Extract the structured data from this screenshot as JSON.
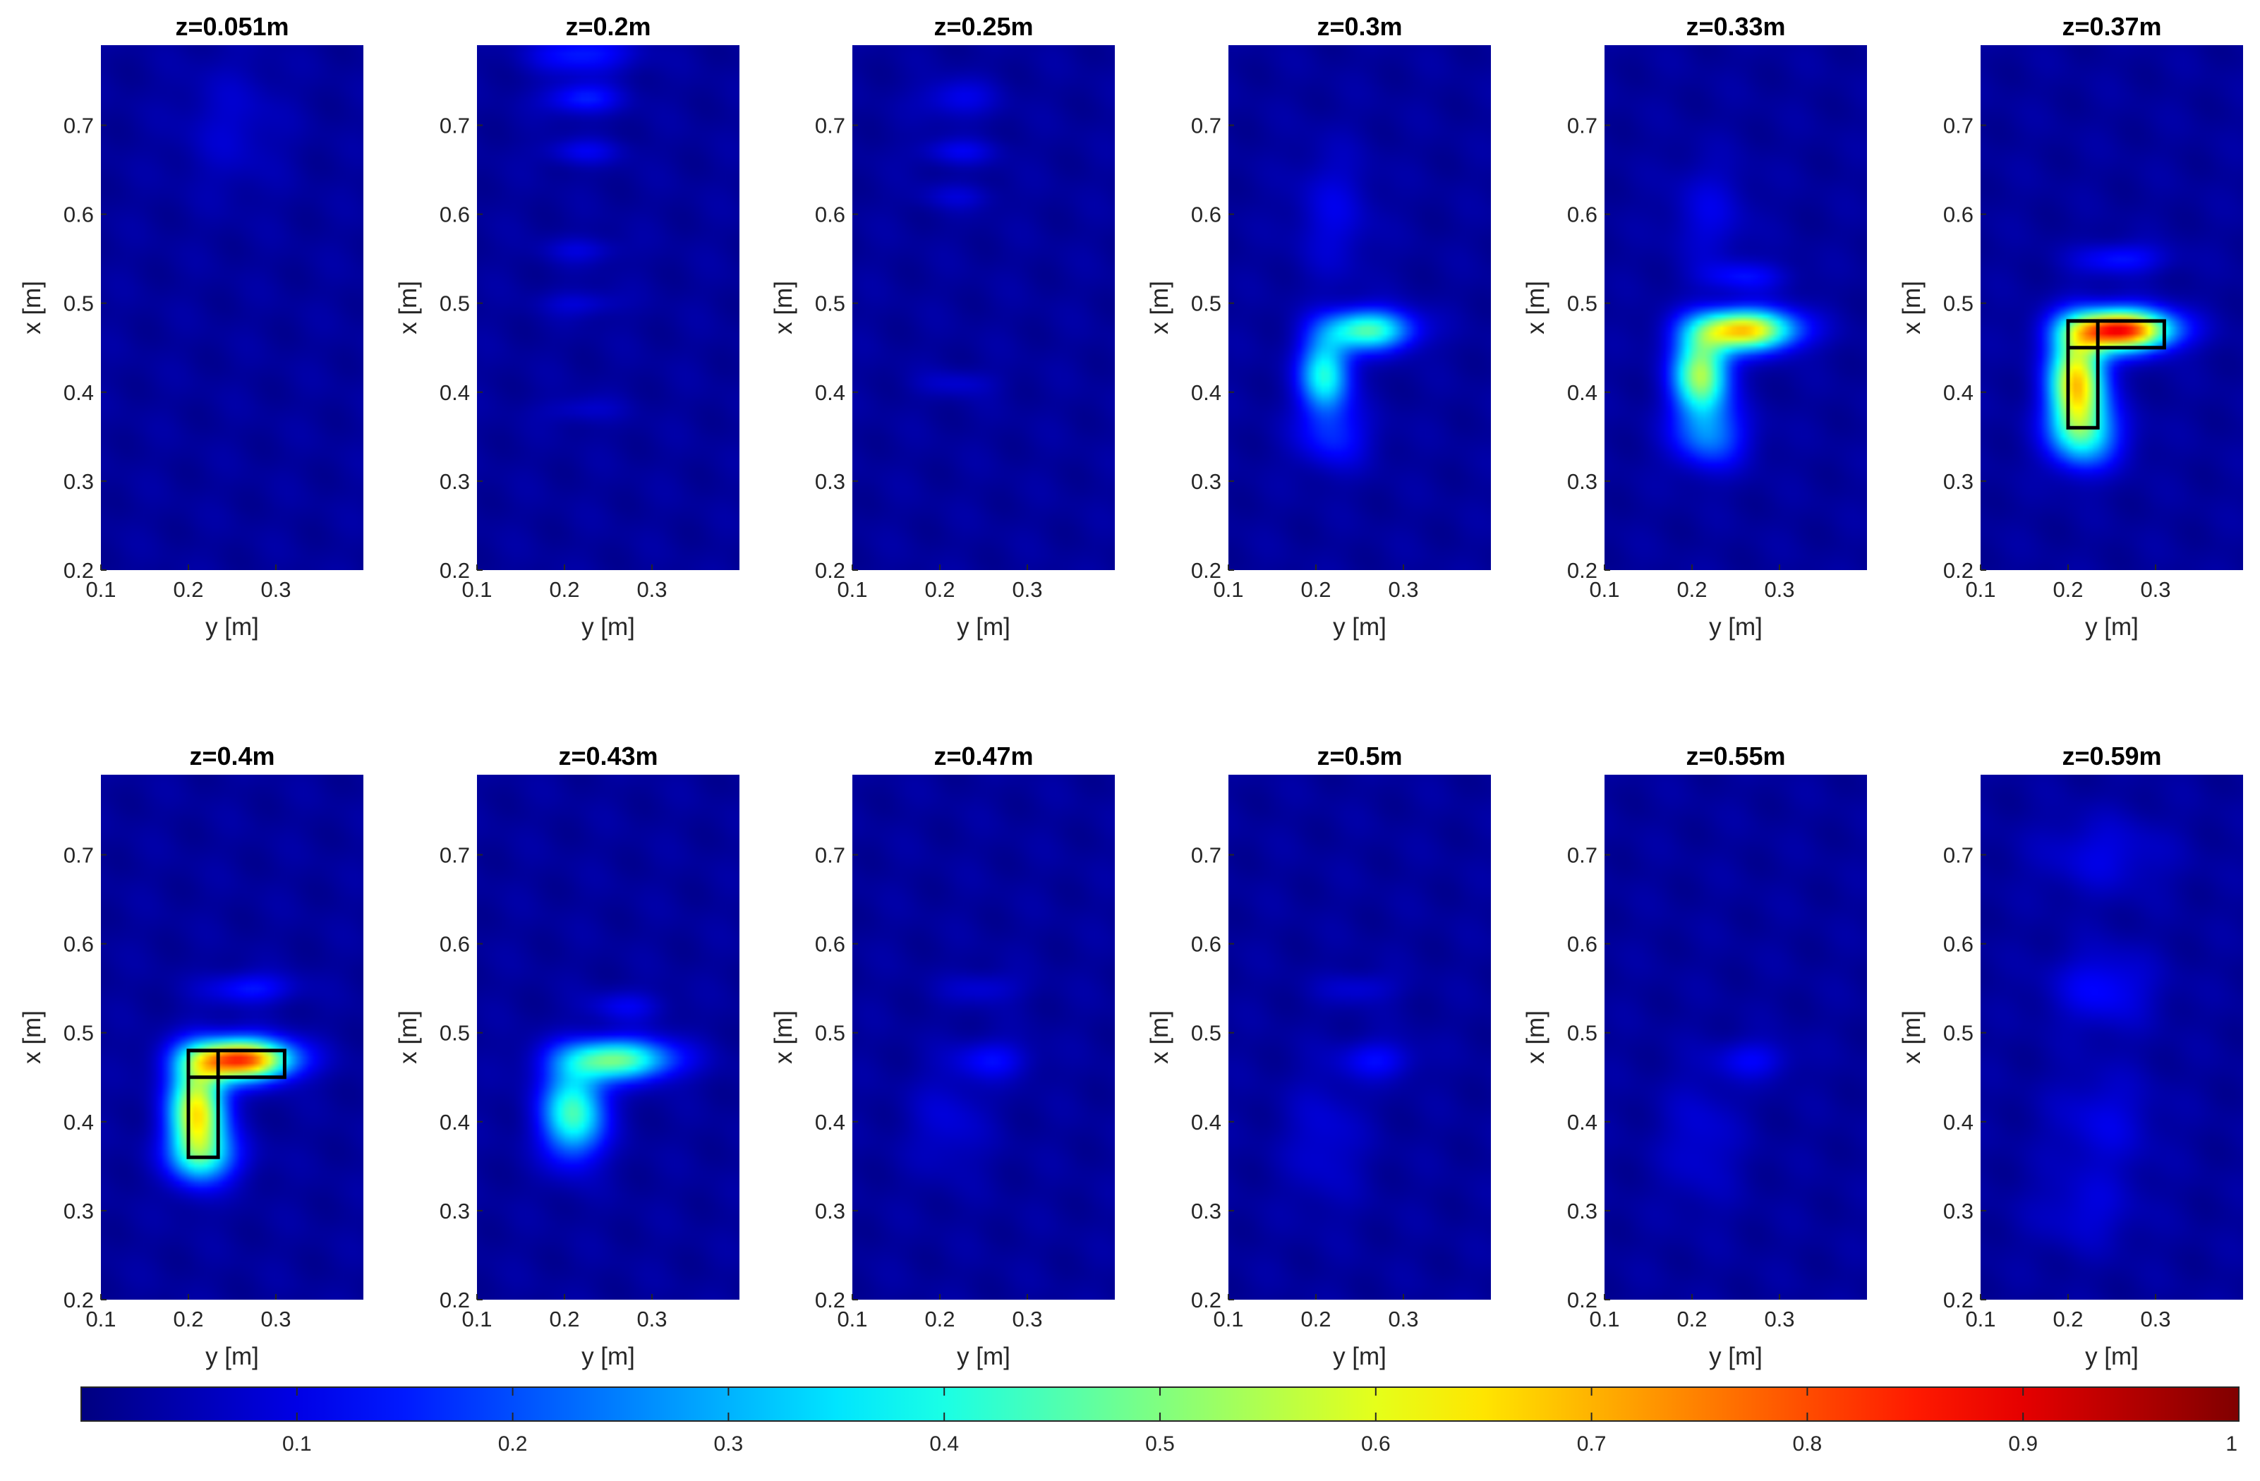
{
  "chart_data": {
    "type": "heatmap",
    "colormap": "jet",
    "xlabel": "y [m]",
    "ylabel": "x [m]",
    "xticks": [
      "0.1",
      "0.2",
      "0.3"
    ],
    "yticks": [
      "0.2",
      "0.3",
      "0.4",
      "0.5",
      "0.6",
      "0.7"
    ],
    "xlim": [
      0.1,
      0.4
    ],
    "ylim": [
      0.2,
      0.79
    ],
    "colorbar": {
      "range": [
        0,
        1
      ],
      "ticks": [
        "0.1",
        "0.2",
        "0.3",
        "0.4",
        "0.5",
        "0.6",
        "0.7",
        "0.8",
        "0.9",
        "1"
      ],
      "placement": "bottom"
    },
    "panels": [
      {
        "title": "z=0.051m",
        "blobs": [
          [
            0.44,
            0.6,
            0.16,
            0.08,
            0.05
          ],
          [
            0.7,
            0.25,
            0.05,
            0.04,
            0.05
          ]
        ],
        "boxes": false
      },
      {
        "title": "z=0.2m",
        "blobs": [
          [
            0.78,
            0.22,
            0.015,
            0.04,
            0.13
          ],
          [
            0.73,
            0.22,
            0.012,
            0.03,
            0.13
          ],
          [
            0.67,
            0.22,
            0.01,
            0.03,
            0.08
          ],
          [
            0.56,
            0.22,
            0.01,
            0.03,
            0.06
          ],
          [
            0.5,
            0.22,
            0.01,
            0.03,
            0.06
          ],
          [
            0.38,
            0.22,
            0.01,
            0.03,
            0.05
          ]
        ],
        "boxes": false
      },
      {
        "title": "z=0.25m",
        "blobs": [
          [
            0.73,
            0.22,
            0.015,
            0.03,
            0.08
          ],
          [
            0.67,
            0.22,
            0.01,
            0.03,
            0.08
          ],
          [
            0.62,
            0.22,
            0.01,
            0.03,
            0.05
          ],
          [
            0.41,
            0.22,
            0.01,
            0.03,
            0.05
          ]
        ],
        "boxes": false
      },
      {
        "title": "z=0.3m",
        "blobs": [
          [
            0.47,
            0.26,
            0.016,
            0.035,
            0.42
          ],
          [
            0.42,
            0.21,
            0.03,
            0.02,
            0.38
          ],
          [
            0.35,
            0.22,
            0.025,
            0.03,
            0.12
          ],
          [
            0.6,
            0.22,
            0.05,
            0.03,
            0.07
          ]
        ],
        "boxes": false
      },
      {
        "title": "z=0.33m",
        "blobs": [
          [
            0.47,
            0.26,
            0.016,
            0.04,
            0.65
          ],
          [
            0.42,
            0.21,
            0.032,
            0.022,
            0.52
          ],
          [
            0.35,
            0.22,
            0.025,
            0.03,
            0.2
          ],
          [
            0.53,
            0.26,
            0.012,
            0.035,
            0.1
          ],
          [
            0.6,
            0.22,
            0.04,
            0.03,
            0.07
          ]
        ],
        "boxes": false
      },
      {
        "title": "z=0.37m",
        "blobs": [
          [
            0.47,
            0.26,
            0.016,
            0.04,
            0.85
          ],
          [
            0.41,
            0.21,
            0.04,
            0.022,
            0.65
          ],
          [
            0.35,
            0.22,
            0.025,
            0.03,
            0.25
          ],
          [
            0.55,
            0.26,
            0.012,
            0.035,
            0.12
          ]
        ],
        "boxes": true
      },
      {
        "title": "z=0.4m",
        "blobs": [
          [
            0.47,
            0.26,
            0.016,
            0.04,
            0.8
          ],
          [
            0.41,
            0.21,
            0.04,
            0.022,
            0.62
          ],
          [
            0.36,
            0.22,
            0.02,
            0.03,
            0.2
          ],
          [
            0.55,
            0.27,
            0.012,
            0.035,
            0.12
          ]
        ],
        "boxes": true
      },
      {
        "title": "z=0.43m",
        "blobs": [
          [
            0.47,
            0.26,
            0.016,
            0.045,
            0.45
          ],
          [
            0.41,
            0.21,
            0.035,
            0.025,
            0.42
          ],
          [
            0.53,
            0.27,
            0.012,
            0.03,
            0.08
          ]
        ],
        "boxes": false
      },
      {
        "title": "z=0.47m",
        "blobs": [
          [
            0.47,
            0.26,
            0.015,
            0.03,
            0.1
          ],
          [
            0.4,
            0.21,
            0.04,
            0.03,
            0.06
          ],
          [
            0.55,
            0.25,
            0.012,
            0.03,
            0.06
          ]
        ],
        "boxes": false
      },
      {
        "title": "z=0.5m",
        "blobs": [
          [
            0.47,
            0.27,
            0.015,
            0.03,
            0.1
          ],
          [
            0.38,
            0.21,
            0.05,
            0.03,
            0.06
          ],
          [
            0.55,
            0.25,
            0.012,
            0.03,
            0.06
          ]
        ],
        "boxes": false
      },
      {
        "title": "z=0.55m",
        "blobs": [
          [
            0.47,
            0.27,
            0.015,
            0.03,
            0.09
          ],
          [
            0.38,
            0.21,
            0.05,
            0.03,
            0.06
          ]
        ],
        "boxes": false
      },
      {
        "title": "z=0.59m",
        "blobs": [
          [
            0.55,
            0.24,
            0.03,
            0.04,
            0.1
          ],
          [
            0.7,
            0.24,
            0.03,
            0.05,
            0.07
          ],
          [
            0.4,
            0.24,
            0.04,
            0.04,
            0.07
          ],
          [
            0.3,
            0.22,
            0.03,
            0.04,
            0.06
          ]
        ],
        "boxes": false
      }
    ],
    "boxes_outline": [
      {
        "y": [
          0.2,
          0.234
        ],
        "x": [
          0.36,
          0.48
        ]
      },
      {
        "y": [
          0.2,
          0.31
        ],
        "x": [
          0.45,
          0.48
        ]
      }
    ]
  }
}
